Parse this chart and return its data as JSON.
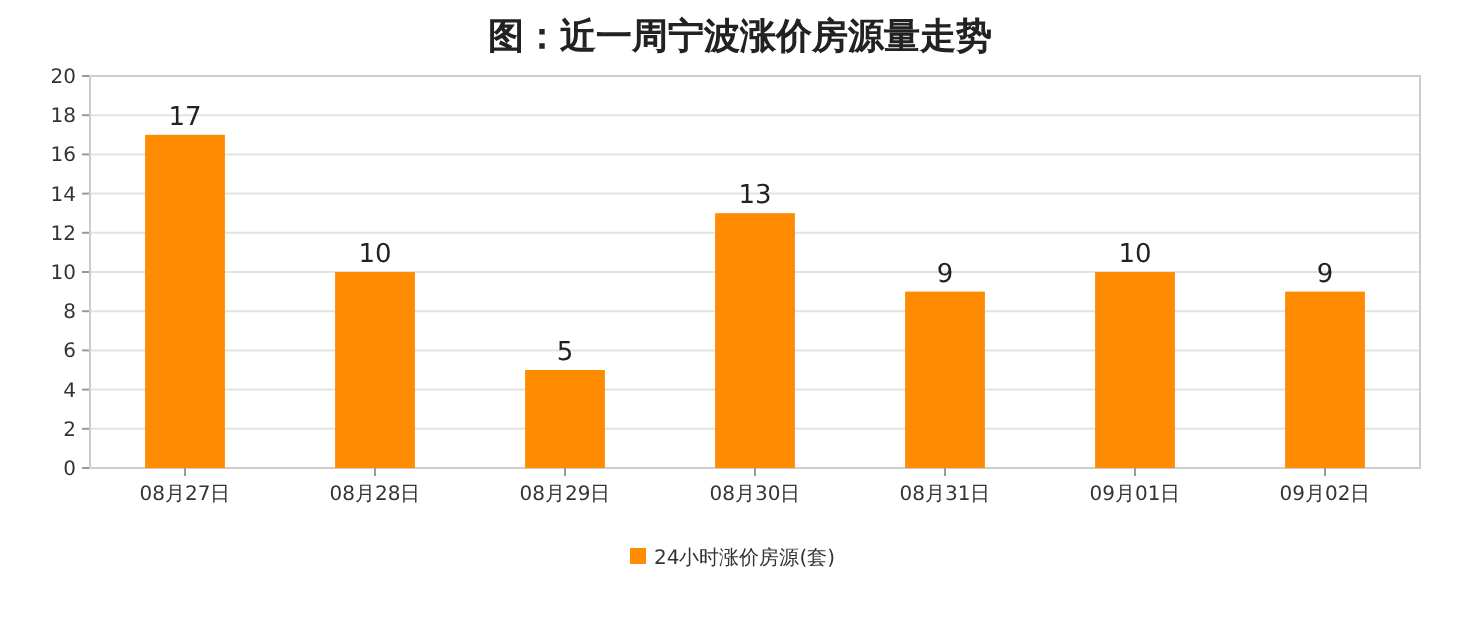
{
  "chart_data": {
    "type": "bar",
    "title": "图：近一周宁波涨价房源量走势",
    "categories": [
      "08月27日",
      "08月28日",
      "08月29日",
      "08月30日",
      "08月31日",
      "09月01日",
      "09月02日"
    ],
    "series": [
      {
        "name": "24小时涨价房源(套)",
        "color": "#ff8c00",
        "values": [
          17,
          10,
          5,
          13,
          9,
          10,
          9
        ]
      }
    ],
    "ylim": [
      0,
      20
    ],
    "yticks": [
      0,
      2,
      4,
      6,
      8,
      10,
      12,
      14,
      16,
      18,
      20
    ],
    "grid": "y",
    "legend": "bottom",
    "data_labels": true
  }
}
